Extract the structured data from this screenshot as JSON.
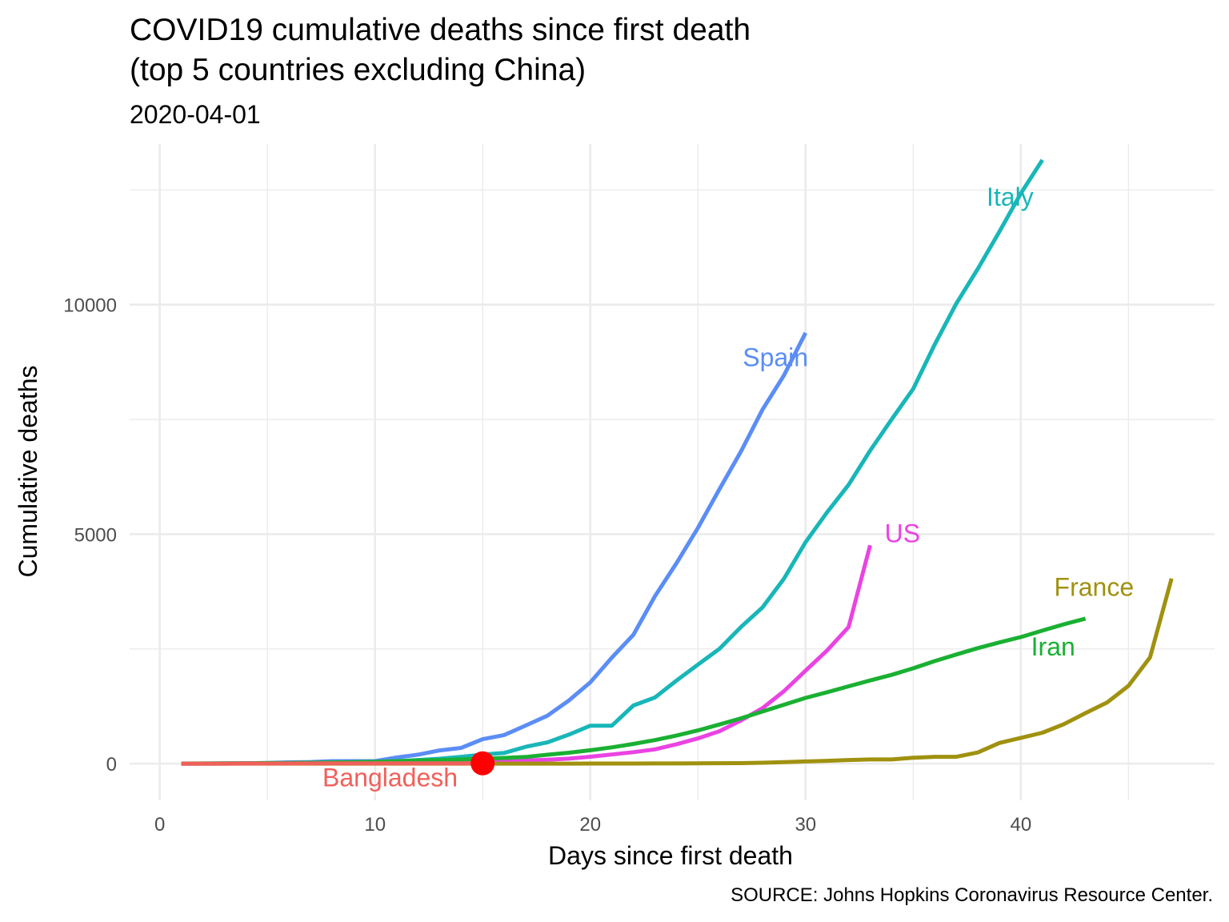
{
  "chart_data": {
    "type": "line",
    "title": "COVID19 cumulative deaths since first death",
    "title_line2": "(top 5 countries excluding China)",
    "subtitle": "2020-04-01",
    "xlabel": "Days since first death",
    "ylabel": "Cumulative deaths",
    "caption": "SOURCE: Johns Hopkins Coronavirus Resource Center.",
    "xlim": [
      -1.4,
      49
    ],
    "ylim": [
      -800,
      13500
    ],
    "x_ticks": [
      0,
      10,
      20,
      30,
      40
    ],
    "x_tick_labels": [
      "0",
      "10",
      "20",
      "30",
      "40"
    ],
    "y_ticks": [
      0,
      5000,
      10000
    ],
    "y_tick_labels": [
      "0",
      "5000",
      "10000"
    ],
    "grid": true,
    "legend": "none",
    "series": [
      {
        "name": "Italy",
        "color": "#18B6B9",
        "label_pos": [
          39.5,
          12350
        ],
        "x": [
          1,
          2,
          3,
          4,
          5,
          6,
          7,
          8,
          9,
          10,
          11,
          12,
          13,
          14,
          15,
          16,
          17,
          18,
          19,
          20,
          21,
          22,
          23,
          24,
          25,
          26,
          27,
          28,
          29,
          30,
          31,
          32,
          33,
          34,
          35,
          36,
          37,
          38,
          39,
          40,
          41
        ],
        "y": [
          1,
          2,
          3,
          7,
          10,
          12,
          17,
          21,
          29,
          34,
          52,
          79,
          107,
          148,
          197,
          233,
          366,
          463,
          631,
          827,
          827,
          1266,
          1441,
          1809,
          2158,
          2503,
          2978,
          3405,
          4032,
          4825,
          5476,
          6077,
          6820,
          7503,
          8165,
          9134,
          10023,
          10779,
          11591,
          12428,
          13155
        ]
      },
      {
        "name": "Spain",
        "color": "#5B8DF6",
        "label_pos": [
          28.6,
          8850
        ],
        "x": [
          1,
          2,
          3,
          4,
          5,
          6,
          7,
          8,
          9,
          10,
          11,
          12,
          13,
          14,
          15,
          16,
          17,
          18,
          19,
          20,
          21,
          22,
          23,
          24,
          25,
          26,
          27,
          28,
          29,
          30
        ],
        "y": [
          1,
          3,
          5,
          10,
          17,
          28,
          35,
          54,
          55,
          55,
          133,
          195,
          289,
          342,
          533,
          623,
          830,
          1043,
          1375,
          1772,
          2311,
          2808,
          3647,
          4365,
          5138,
          5982,
          6803,
          7716,
          8464,
          9387
        ]
      },
      {
        "name": "US",
        "color": "#EA43E3",
        "label_pos": [
          34.5,
          5020
        ],
        "x": [
          1,
          2,
          3,
          4,
          5,
          6,
          7,
          8,
          9,
          10,
          11,
          12,
          13,
          14,
          15,
          16,
          17,
          18,
          19,
          20,
          21,
          22,
          23,
          24,
          25,
          26,
          27,
          28,
          29,
          30,
          31,
          32,
          33
        ],
        "y": [
          1,
          1,
          1,
          6,
          9,
          11,
          12,
          15,
          19,
          22,
          26,
          28,
          36,
          40,
          47,
          57,
          69,
          85,
          108,
          150,
          200,
          250,
          310,
          422,
          549,
          706,
          942,
          1209,
          1581,
          2026,
          2467,
          2978,
          4757
        ]
      },
      {
        "name": "France",
        "color": "#A0910F",
        "label_pos": [
          43.4,
          3850
        ],
        "x": [
          1,
          2,
          3,
          4,
          5,
          6,
          7,
          8,
          9,
          10,
          11,
          12,
          13,
          14,
          15,
          16,
          17,
          18,
          19,
          20,
          21,
          22,
          23,
          24,
          25,
          26,
          27,
          28,
          29,
          30,
          31,
          32,
          33,
          34,
          35,
          36,
          37,
          38,
          39,
          40,
          41,
          42,
          43,
          44,
          45,
          46,
          47
        ],
        "y": [
          1,
          1,
          1,
          1,
          1,
          1,
          1,
          1,
          1,
          1,
          1,
          1,
          1,
          1,
          1,
          1,
          1,
          1,
          1,
          2,
          2,
          3,
          4,
          4,
          7,
          9,
          11,
          19,
          33,
          48,
          61,
          79,
          91,
          91,
          127,
          148,
          148,
          243,
          450,
          562,
          674,
          860,
          1100,
          1331,
          1696,
          2314,
          4032
        ]
      },
      {
        "name": "Iran",
        "color": "#1AB032",
        "label_pos": [
          41.5,
          2550
        ],
        "x": [
          1,
          2,
          3,
          4,
          5,
          6,
          7,
          8,
          9,
          10,
          11,
          12,
          13,
          14,
          15,
          16,
          17,
          18,
          19,
          20,
          21,
          22,
          23,
          24,
          25,
          26,
          27,
          28,
          29,
          30,
          31,
          32,
          33,
          34,
          35,
          36,
          37,
          38,
          39,
          40,
          41,
          42,
          43
        ],
        "y": [
          2,
          4,
          5,
          8,
          12,
          16,
          19,
          26,
          34,
          43,
          54,
          66,
          77,
          92,
          107,
          124,
          145,
          194,
          237,
          291,
          354,
          429,
          514,
          611,
          724,
          853,
          988,
          1135,
          1284,
          1433,
          1556,
          1685,
          1812,
          1934,
          2077,
          2234,
          2378,
          2517,
          2640,
          2757,
          2898,
          3036,
          3160
        ]
      },
      {
        "name": "Bangladesh",
        "color": "#F0605B",
        "label_pos": [
          10.7,
          -300
        ],
        "x": [
          1,
          2,
          3,
          4,
          5,
          6,
          7,
          8,
          9,
          10,
          11,
          12,
          13,
          14,
          15
        ],
        "y": [
          1,
          1,
          1,
          2,
          3,
          4,
          4,
          5,
          5,
          5,
          5,
          5,
          6,
          6,
          6
        ]
      }
    ],
    "highlight_point": {
      "x": 15,
      "y": 6,
      "color": "#FF0000"
    }
  }
}
